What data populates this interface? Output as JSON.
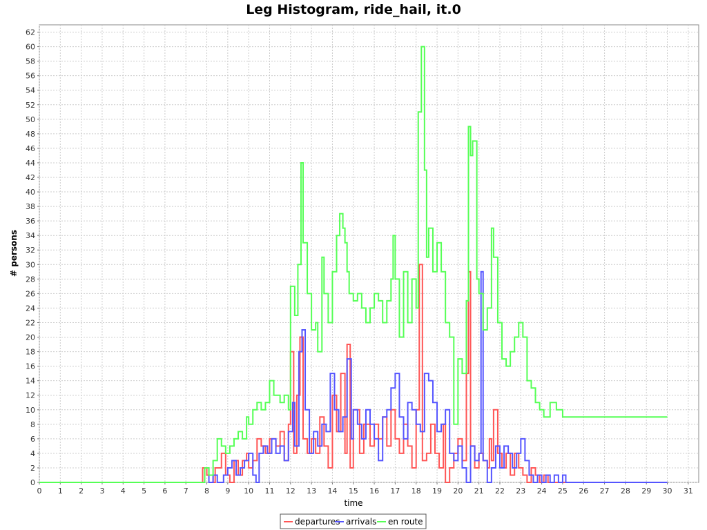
{
  "chart_data": {
    "type": "line",
    "title": "Leg Histogram, ride_hail, it.0",
    "xlabel": "time",
    "ylabel": "# persons",
    "xlim": [
      0,
      31.5
    ],
    "ylim": [
      0,
      63
    ],
    "x_ticks": [
      0,
      1,
      2,
      3,
      4,
      5,
      6,
      7,
      8,
      9,
      10,
      11,
      12,
      13,
      14,
      15,
      16,
      17,
      18,
      19,
      20,
      21,
      22,
      23,
      24,
      25,
      26,
      27,
      28,
      29,
      30,
      31
    ],
    "y_ticks": [
      0,
      2,
      4,
      6,
      8,
      10,
      12,
      14,
      16,
      18,
      20,
      22,
      24,
      26,
      28,
      30,
      32,
      34,
      36,
      38,
      40,
      42,
      44,
      46,
      48,
      50,
      52,
      54,
      56,
      58,
      60,
      62
    ],
    "grid": true,
    "legend_position": "bottom",
    "step_interpolation": "step-after",
    "series": [
      {
        "name": "departures",
        "color": "#ff5555",
        "points": [
          [
            0,
            0
          ],
          [
            7.8,
            0
          ],
          [
            7.8,
            2
          ],
          [
            8.0,
            1
          ],
          [
            8.3,
            0
          ],
          [
            8.4,
            2
          ],
          [
            8.7,
            4
          ],
          [
            8.9,
            1
          ],
          [
            9.1,
            0
          ],
          [
            9.3,
            3
          ],
          [
            9.5,
            1
          ],
          [
            9.7,
            3
          ],
          [
            9.9,
            4
          ],
          [
            10.0,
            2
          ],
          [
            10.2,
            3
          ],
          [
            10.4,
            6
          ],
          [
            10.6,
            5
          ],
          [
            10.8,
            4
          ],
          [
            11.0,
            6
          ],
          [
            11.3,
            5
          ],
          [
            11.5,
            7
          ],
          [
            11.7,
            3
          ],
          [
            11.9,
            8
          ],
          [
            12.0,
            18
          ],
          [
            12.15,
            4
          ],
          [
            12.3,
            12
          ],
          [
            12.45,
            20
          ],
          [
            12.6,
            6
          ],
          [
            12.8,
            4
          ],
          [
            13.0,
            6
          ],
          [
            13.2,
            4
          ],
          [
            13.4,
            9
          ],
          [
            13.6,
            5
          ],
          [
            13.8,
            2
          ],
          [
            14.0,
            12
          ],
          [
            14.2,
            7
          ],
          [
            14.4,
            15
          ],
          [
            14.6,
            4
          ],
          [
            14.7,
            19
          ],
          [
            14.85,
            2
          ],
          [
            15.0,
            10
          ],
          [
            15.3,
            4
          ],
          [
            15.5,
            8
          ],
          [
            15.8,
            5
          ],
          [
            16.0,
            8
          ],
          [
            16.2,
            6
          ],
          [
            16.4,
            9
          ],
          [
            16.6,
            5
          ],
          [
            16.8,
            10
          ],
          [
            17.0,
            6
          ],
          [
            17.2,
            4
          ],
          [
            17.4,
            8
          ],
          [
            17.6,
            5
          ],
          [
            17.8,
            2
          ],
          [
            18.0,
            10
          ],
          [
            18.15,
            30
          ],
          [
            18.3,
            3
          ],
          [
            18.5,
            4
          ],
          [
            18.7,
            8
          ],
          [
            18.9,
            4
          ],
          [
            19.1,
            2
          ],
          [
            19.3,
            8
          ],
          [
            19.4,
            0
          ],
          [
            19.6,
            2
          ],
          [
            19.8,
            4
          ],
          [
            20.0,
            6
          ],
          [
            20.2,
            3
          ],
          [
            20.4,
            15
          ],
          [
            20.5,
            29
          ],
          [
            20.6,
            5
          ],
          [
            20.8,
            2
          ],
          [
            21.0,
            4
          ],
          [
            21.2,
            3
          ],
          [
            21.4,
            2
          ],
          [
            21.5,
            6
          ],
          [
            21.6,
            3
          ],
          [
            21.7,
            10
          ],
          [
            21.9,
            4
          ],
          [
            22.1,
            2
          ],
          [
            22.3,
            4
          ],
          [
            22.5,
            1
          ],
          [
            22.7,
            4
          ],
          [
            22.9,
            2
          ],
          [
            23.1,
            1
          ],
          [
            23.3,
            0
          ],
          [
            23.5,
            2
          ],
          [
            23.7,
            1
          ],
          [
            23.9,
            0
          ],
          [
            24.1,
            1
          ],
          [
            24.3,
            0
          ],
          [
            30.0,
            0
          ]
        ]
      },
      {
        "name": "arrivals",
        "color": "#5555ff",
        "points": [
          [
            0,
            0
          ],
          [
            7.8,
            0
          ],
          [
            7.9,
            2
          ],
          [
            8.1,
            0
          ],
          [
            8.3,
            1
          ],
          [
            8.5,
            0
          ],
          [
            8.8,
            1
          ],
          [
            9.0,
            2
          ],
          [
            9.2,
            3
          ],
          [
            9.4,
            1
          ],
          [
            9.6,
            2
          ],
          [
            9.8,
            3
          ],
          [
            10.0,
            4
          ],
          [
            10.2,
            1
          ],
          [
            10.35,
            0
          ],
          [
            10.5,
            4
          ],
          [
            10.7,
            5
          ],
          [
            10.9,
            4
          ],
          [
            11.1,
            6
          ],
          [
            11.3,
            4
          ],
          [
            11.5,
            5
          ],
          [
            11.7,
            3
          ],
          [
            11.9,
            7
          ],
          [
            12.1,
            11
          ],
          [
            12.2,
            5
          ],
          [
            12.4,
            18
          ],
          [
            12.55,
            21
          ],
          [
            12.7,
            10
          ],
          [
            12.9,
            4
          ],
          [
            13.1,
            7
          ],
          [
            13.3,
            5
          ],
          [
            13.5,
            8
          ],
          [
            13.7,
            7
          ],
          [
            13.9,
            15
          ],
          [
            14.1,
            10
          ],
          [
            14.3,
            7
          ],
          [
            14.5,
            9
          ],
          [
            14.7,
            17
          ],
          [
            14.9,
            6
          ],
          [
            15.0,
            10
          ],
          [
            15.2,
            8
          ],
          [
            15.4,
            6
          ],
          [
            15.6,
            10
          ],
          [
            15.8,
            8
          ],
          [
            16.0,
            6
          ],
          [
            16.2,
            3
          ],
          [
            16.4,
            9
          ],
          [
            16.6,
            10
          ],
          [
            16.8,
            13
          ],
          [
            17.0,
            15
          ],
          [
            17.2,
            9
          ],
          [
            17.4,
            6
          ],
          [
            17.6,
            11
          ],
          [
            17.8,
            10
          ],
          [
            18.0,
            8
          ],
          [
            18.2,
            7
          ],
          [
            18.4,
            15
          ],
          [
            18.6,
            14
          ],
          [
            18.8,
            11
          ],
          [
            19.0,
            7
          ],
          [
            19.2,
            8
          ],
          [
            19.4,
            10
          ],
          [
            19.6,
            4
          ],
          [
            19.8,
            3
          ],
          [
            20.0,
            5
          ],
          [
            20.2,
            2
          ],
          [
            20.4,
            0
          ],
          [
            20.6,
            5
          ],
          [
            20.8,
            3
          ],
          [
            21.0,
            4
          ],
          [
            21.1,
            29
          ],
          [
            21.2,
            3
          ],
          [
            21.4,
            0
          ],
          [
            21.6,
            2
          ],
          [
            21.8,
            5
          ],
          [
            22.0,
            2
          ],
          [
            22.2,
            5
          ],
          [
            22.4,
            4
          ],
          [
            22.6,
            2
          ],
          [
            22.8,
            4
          ],
          [
            23.0,
            6
          ],
          [
            23.2,
            3
          ],
          [
            23.4,
            1
          ],
          [
            23.6,
            0
          ],
          [
            23.8,
            1
          ],
          [
            24.0,
            0
          ],
          [
            24.2,
            1
          ],
          [
            24.4,
            0
          ],
          [
            24.6,
            1
          ],
          [
            24.8,
            0
          ],
          [
            25.0,
            1
          ],
          [
            25.15,
            0
          ],
          [
            30.0,
            0
          ]
        ]
      },
      {
        "name": "en route",
        "color": "#55ff55",
        "points": [
          [
            0,
            0
          ],
          [
            7.8,
            0
          ],
          [
            7.9,
            2
          ],
          [
            8.1,
            1
          ],
          [
            8.3,
            3
          ],
          [
            8.5,
            6
          ],
          [
            8.7,
            5
          ],
          [
            8.9,
            4
          ],
          [
            9.1,
            5
          ],
          [
            9.3,
            6
          ],
          [
            9.5,
            7
          ],
          [
            9.7,
            6
          ],
          [
            9.9,
            9
          ],
          [
            10.0,
            8
          ],
          [
            10.2,
            10
          ],
          [
            10.4,
            11
          ],
          [
            10.6,
            10
          ],
          [
            10.8,
            11
          ],
          [
            11.0,
            14
          ],
          [
            11.2,
            12
          ],
          [
            11.5,
            11
          ],
          [
            11.7,
            12
          ],
          [
            11.9,
            10
          ],
          [
            12.0,
            27
          ],
          [
            12.2,
            23
          ],
          [
            12.35,
            30
          ],
          [
            12.5,
            44
          ],
          [
            12.6,
            33
          ],
          [
            12.8,
            26
          ],
          [
            13.0,
            21
          ],
          [
            13.2,
            22
          ],
          [
            13.3,
            18
          ],
          [
            13.5,
            31
          ],
          [
            13.6,
            26
          ],
          [
            13.8,
            22
          ],
          [
            14.0,
            29
          ],
          [
            14.2,
            34
          ],
          [
            14.35,
            37
          ],
          [
            14.5,
            35
          ],
          [
            14.6,
            33
          ],
          [
            14.7,
            29
          ],
          [
            14.8,
            26
          ],
          [
            15.0,
            25
          ],
          [
            15.2,
            26
          ],
          [
            15.4,
            24
          ],
          [
            15.6,
            22
          ],
          [
            15.8,
            24
          ],
          [
            16.0,
            26
          ],
          [
            16.2,
            25
          ],
          [
            16.4,
            22
          ],
          [
            16.6,
            25
          ],
          [
            16.8,
            28
          ],
          [
            16.9,
            34
          ],
          [
            17.0,
            28
          ],
          [
            17.2,
            20
          ],
          [
            17.4,
            29
          ],
          [
            17.6,
            22
          ],
          [
            17.8,
            28
          ],
          [
            18.0,
            24
          ],
          [
            18.1,
            51
          ],
          [
            18.25,
            60
          ],
          [
            18.4,
            43
          ],
          [
            18.5,
            31
          ],
          [
            18.6,
            35
          ],
          [
            18.8,
            29
          ],
          [
            19.0,
            33
          ],
          [
            19.2,
            29
          ],
          [
            19.4,
            22
          ],
          [
            19.6,
            20
          ],
          [
            19.8,
            8
          ],
          [
            20.0,
            17
          ],
          [
            20.2,
            15
          ],
          [
            20.4,
            25
          ],
          [
            20.5,
            49
          ],
          [
            20.6,
            45
          ],
          [
            20.7,
            47
          ],
          [
            20.9,
            28
          ],
          [
            21.0,
            26
          ],
          [
            21.2,
            21
          ],
          [
            21.4,
            24
          ],
          [
            21.6,
            35
          ],
          [
            21.7,
            31
          ],
          [
            21.9,
            22
          ],
          [
            22.1,
            17
          ],
          [
            22.3,
            16
          ],
          [
            22.5,
            18
          ],
          [
            22.7,
            20
          ],
          [
            22.9,
            22
          ],
          [
            23.1,
            20
          ],
          [
            23.3,
            14
          ],
          [
            23.5,
            13
          ],
          [
            23.7,
            11
          ],
          [
            23.9,
            10
          ],
          [
            24.1,
            9
          ],
          [
            24.4,
            11
          ],
          [
            24.7,
            10
          ],
          [
            25.0,
            9
          ],
          [
            30.0,
            9
          ]
        ]
      }
    ]
  }
}
